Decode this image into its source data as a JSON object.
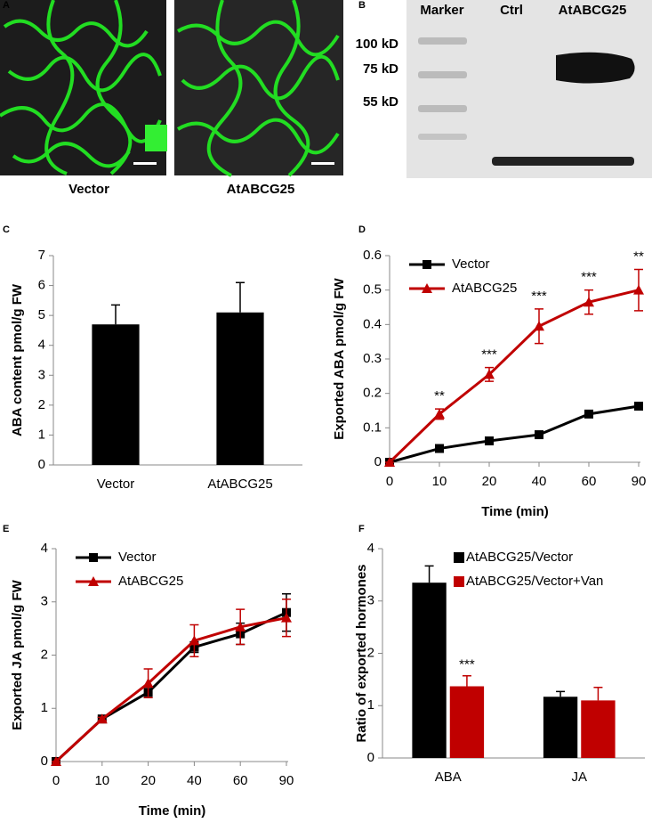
{
  "figure": {
    "panel_a": {
      "label": "A",
      "captions": [
        "Vector",
        "AtABCG25"
      ]
    },
    "panel_b": {
      "label": "B",
      "lanes": [
        "Marker",
        "Ctrl",
        "AtABCG25"
      ],
      "markers": [
        "100 kD",
        "75 kD",
        "55 kD"
      ]
    }
  },
  "chart_data": [
    {
      "panel_label": "C",
      "type": "bar",
      "ylabel": "ABA  content pmol/g FW",
      "categories": [
        "Vector",
        "AtABCG25"
      ],
      "series": [
        {
          "color": "#000000",
          "values": [
            4.7,
            5.1
          ],
          "errors": [
            0.65,
            1.0
          ]
        }
      ],
      "ylim": [
        0,
        7
      ],
      "yticks": [
        0,
        1,
        2,
        3,
        4,
        5,
        6,
        7
      ]
    },
    {
      "panel_label": "D",
      "type": "line",
      "xlabel": "Time (min)",
      "ylabel": "Exported ABA  pmol/g FW",
      "categories": [
        "0",
        "10",
        "20",
        "40",
        "60",
        "90"
      ],
      "legend": "upper left",
      "series": [
        {
          "name": "Vector",
          "color": "#000000",
          "marker": "square",
          "values": [
            0,
            0.04,
            0.062,
            0.08,
            0.14,
            0.163
          ],
          "errors": [
            0,
            0.005,
            0.006,
            0.006,
            0.008,
            0.008
          ]
        },
        {
          "name": "AtABCG25",
          "color": "#c00000",
          "marker": "triangle",
          "values": [
            0,
            0.14,
            0.255,
            0.395,
            0.465,
            0.5
          ],
          "errors": [
            0,
            0.015,
            0.02,
            0.05,
            0.035,
            0.06
          ],
          "annotations": [
            null,
            "**",
            "***",
            "***",
            "***",
            "**"
          ]
        }
      ],
      "ylim": [
        0,
        0.6
      ],
      "yticks": [
        0,
        0.1,
        0.2,
        0.3,
        0.4,
        0.5,
        0.6
      ]
    },
    {
      "panel_label": "E",
      "type": "line",
      "xlabel": "Time (min)",
      "ylabel": "Exported JA  pmol/g FW",
      "categories": [
        "0",
        "10",
        "20",
        "40",
        "60",
        "90"
      ],
      "legend": "upper left",
      "series": [
        {
          "name": "Vector",
          "color": "#000000",
          "marker": "square",
          "values": [
            0,
            0.8,
            1.3,
            2.15,
            2.4,
            2.8
          ],
          "errors": [
            0,
            0.03,
            0.1,
            0.1,
            0.2,
            0.35
          ]
        },
        {
          "name": "AtABCG25",
          "color": "#c00000",
          "marker": "triangle",
          "values": [
            0,
            0.8,
            1.47,
            2.27,
            2.53,
            2.7
          ],
          "errors": [
            0,
            0.03,
            0.27,
            0.3,
            0.33,
            0.35
          ]
        }
      ],
      "ylim": [
        0,
        4
      ],
      "yticks": [
        0,
        1,
        2,
        3,
        4
      ]
    },
    {
      "panel_label": "F",
      "type": "bar",
      "ylabel": "Ratio of exported hormones",
      "categories": [
        "ABA",
        "JA"
      ],
      "legend": "upper left",
      "series": [
        {
          "name": "AtABCG25/Vector",
          "color": "#000000",
          "values": [
            3.35,
            1.17
          ],
          "errors": [
            0.32,
            0.1
          ]
        },
        {
          "name": "AtABCG25/Vector+Van",
          "color": "#c00000",
          "values": [
            1.37,
            1.1
          ],
          "errors": [
            0.2,
            0.25
          ],
          "annotations": [
            "***",
            null
          ]
        }
      ],
      "ylim": [
        0,
        4
      ],
      "yticks": [
        0,
        1,
        2,
        3,
        4
      ]
    }
  ]
}
